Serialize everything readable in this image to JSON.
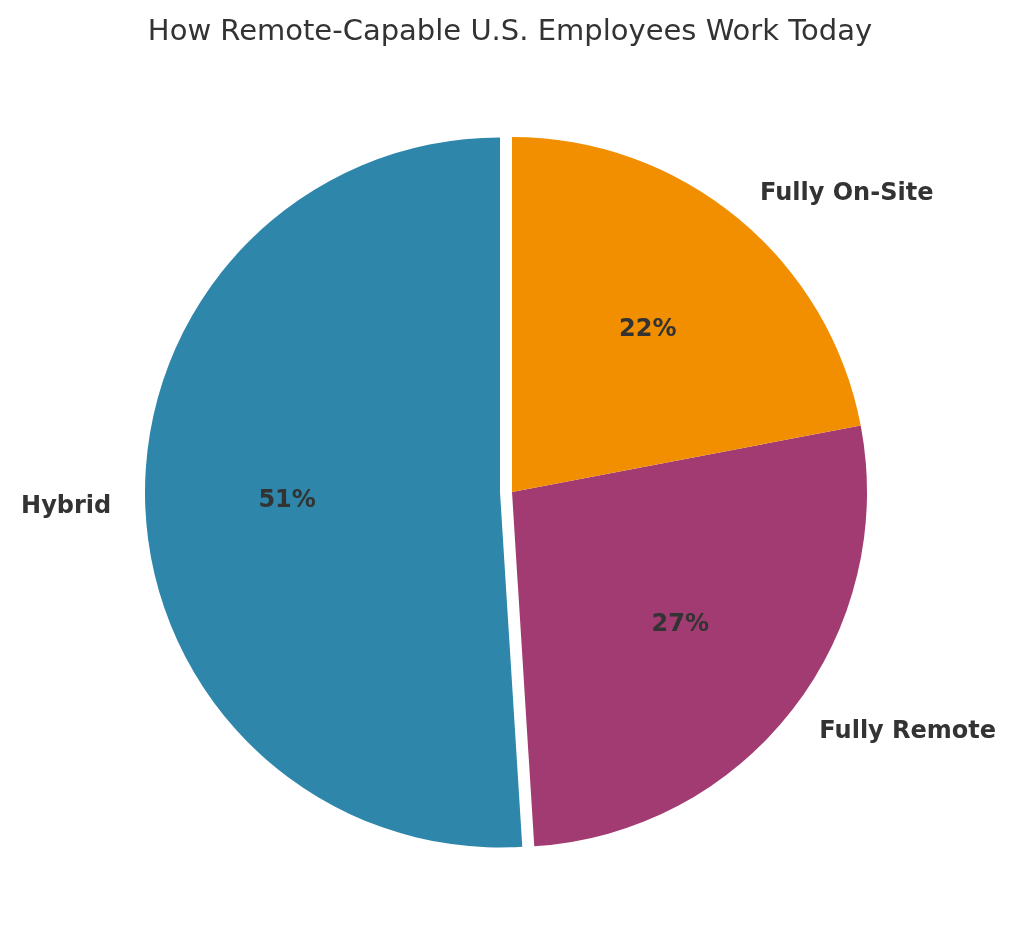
{
  "chart_data": {
    "type": "pie",
    "title": "How Remote-Capable U.S. Employees Work Today",
    "categories": [
      "Hybrid",
      "Fully Remote",
      "Fully On-Site"
    ],
    "values": [
      51,
      27,
      22
    ],
    "colors": [
      "#2e86ab",
      "#a23b72",
      "#f18f01"
    ],
    "value_labels": [
      "51%",
      "27%",
      "22%"
    ],
    "legend": false
  }
}
